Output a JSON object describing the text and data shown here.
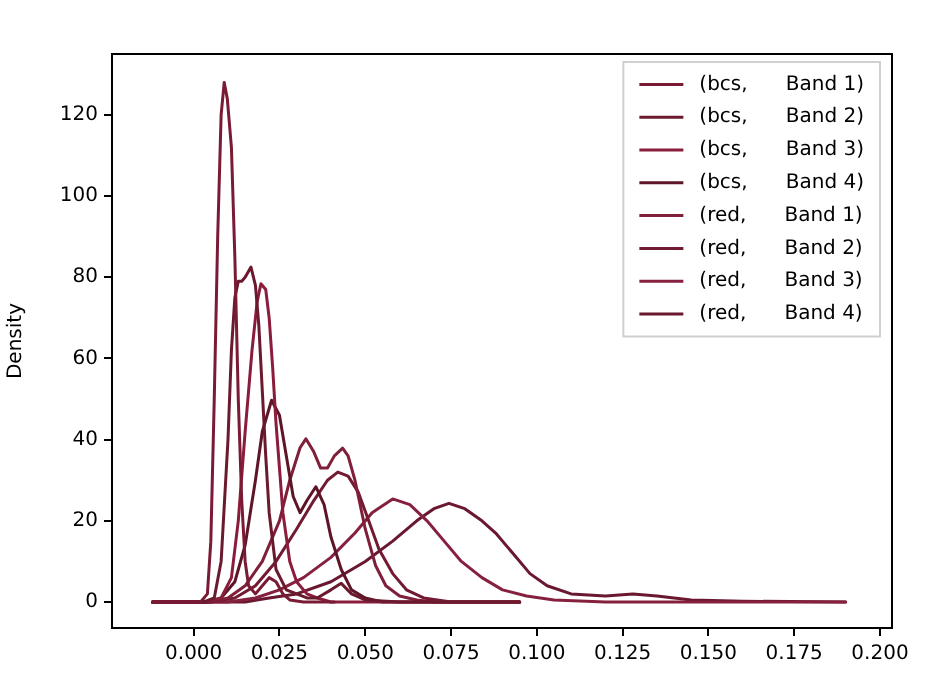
{
  "chart_data": {
    "type": "line",
    "ylabel": "Density",
    "legend": "top right",
    "marker": "none",
    "grid": false,
    "xlim": [
      -0.0238,
      0.2035
    ],
    "ylim": [
      -6.4,
      135
    ],
    "xticks": [
      {
        "value": 0,
        "label": "0.000"
      },
      {
        "value": 0.025,
        "label": "0.025"
      },
      {
        "value": 0.05,
        "label": "0.050"
      },
      {
        "value": 0.075,
        "label": "0.075"
      },
      {
        "value": 0.1,
        "label": "0.100"
      },
      {
        "value": 0.125,
        "label": "0.125"
      },
      {
        "value": 0.15,
        "label": "0.150"
      },
      {
        "value": 0.175,
        "label": "0.175"
      },
      {
        "value": 0.2,
        "label": "0.200"
      }
    ],
    "yticks": [
      0,
      20,
      40,
      60,
      80,
      100,
      120
    ],
    "series": [
      {
        "name": "(bcs,      Band 1)",
        "color": "#7a1b36",
        "x": [
          -0.012,
          0.002,
          0.004,
          0.005,
          0.006,
          0.007,
          0.008,
          0.0089,
          0.0098,
          0.011,
          0.012,
          0.013,
          0.014,
          0.015,
          0.016,
          0.018,
          0.02,
          0.022,
          0.024,
          0.026,
          0.028,
          0.032,
          0.041
        ],
        "values": [
          0,
          0,
          2,
          15,
          50,
          90,
          120,
          128,
          124,
          112,
          85,
          50,
          25,
          10,
          4,
          2,
          4,
          6,
          5,
          2,
          0.5,
          0,
          0
        ]
      },
      {
        "name": "(bcs,      Band 2)",
        "color": "#6b1a2e",
        "x": [
          -0.012,
          0.003,
          0.006,
          0.008,
          0.01,
          0.011,
          0.012,
          0.013,
          0.014,
          0.015,
          0.0167,
          0.018,
          0.019,
          0.02,
          0.021,
          0.022,
          0.024,
          0.027,
          0.03,
          0.033,
          0.036,
          0.04,
          0.043,
          0.046,
          0.05,
          0.06,
          0.095
        ],
        "values": [
          0,
          0,
          1,
          10,
          40,
          62,
          75,
          79,
          79,
          80,
          82.5,
          78,
          68,
          52,
          36,
          22,
          8,
          3,
          2,
          1,
          1,
          3,
          4.6,
          2,
          0.5,
          0,
          0
        ]
      },
      {
        "name": "(bcs,      Band 3)",
        "color": "#8a1c3c",
        "x": [
          -0.012,
          0.004,
          0.008,
          0.011,
          0.013,
          0.015,
          0.017,
          0.0185,
          0.0196,
          0.021,
          0.022,
          0.023,
          0.024,
          0.026,
          0.028,
          0.03,
          0.033,
          0.036,
          0.04,
          0.095
        ],
        "values": [
          0,
          0,
          1,
          6,
          20,
          42,
          62,
          74,
          78.4,
          77,
          70,
          58,
          44,
          22,
          10,
          5,
          2,
          1,
          0,
          0
        ]
      },
      {
        "name": "(bcs,      Band 4)",
        "color": "#5e1528",
        "x": [
          -0.012,
          0.004,
          0.008,
          0.012,
          0.015,
          0.018,
          0.02,
          0.0227,
          0.025,
          0.027,
          0.029,
          0.031,
          0.033,
          0.0356,
          0.038,
          0.04,
          0.043,
          0.046,
          0.05,
          0.055,
          0.095
        ],
        "values": [
          0,
          0,
          1,
          5,
          14,
          30,
          42,
          49.7,
          46,
          36,
          26,
          22,
          25,
          28.4,
          24,
          16,
          8,
          3,
          1,
          0,
          0
        ]
      },
      {
        "name": "(red,      Band 1)",
        "color": "#7f1f3a",
        "x": [
          -0.012,
          0.005,
          0.01,
          0.015,
          0.02,
          0.025,
          0.028,
          0.031,
          0.0327,
          0.035,
          0.037,
          0.039,
          0.041,
          0.0434,
          0.045,
          0.047,
          0.05,
          0.053,
          0.056,
          0.06,
          0.065,
          0.07,
          0.095
        ],
        "values": [
          0,
          0,
          1,
          4,
          10,
          20,
          30,
          38,
          40.2,
          37,
          33,
          33,
          36,
          37.9,
          36,
          30,
          18,
          9,
          4,
          1.5,
          0.5,
          0,
          0
        ]
      },
      {
        "name": "(red,      Band 2)",
        "color": "#731a33",
        "x": [
          -0.012,
          0.005,
          0.012,
          0.018,
          0.024,
          0.03,
          0.035,
          0.039,
          0.042,
          0.045,
          0.048,
          0.051,
          0.054,
          0.058,
          0.062,
          0.067,
          0.075,
          0.095
        ],
        "values": [
          0,
          0,
          1,
          4,
          10,
          18,
          25,
          30,
          32,
          31,
          27,
          20,
          13,
          7,
          3,
          1,
          0,
          0
        ]
      },
      {
        "name": "(red,      Band 3)",
        "color": "#86203f",
        "x": [
          -0.012,
          0.01,
          0.018,
          0.025,
          0.032,
          0.04,
          0.047,
          0.052,
          0.058,
          0.063,
          0.068,
          0.073,
          0.078,
          0.084,
          0.09,
          0.097,
          0.105,
          0.12,
          0.19
        ],
        "values": [
          0,
          0,
          1,
          3,
          6,
          11,
          17,
          22,
          25.4,
          24,
          20,
          15,
          10,
          6,
          3,
          1.5,
          0.5,
          0,
          0
        ]
      },
      {
        "name": "(red,      Band 4)",
        "color": "#691830",
        "x": [
          -0.012,
          0.015,
          0.022,
          0.03,
          0.04,
          0.05,
          0.058,
          0.065,
          0.07,
          0.0744,
          0.079,
          0.084,
          0.088,
          0.093,
          0.098,
          0.103,
          0.11,
          0.12,
          0.128,
          0.135,
          0.145,
          0.16,
          0.19
        ],
        "values": [
          0,
          0,
          1,
          2,
          5,
          10,
          15,
          20,
          23,
          24.3,
          23,
          20,
          17,
          12,
          7,
          4,
          2,
          1.5,
          2,
          1.5,
          0.5,
          0.2,
          0
        ]
      }
    ]
  }
}
